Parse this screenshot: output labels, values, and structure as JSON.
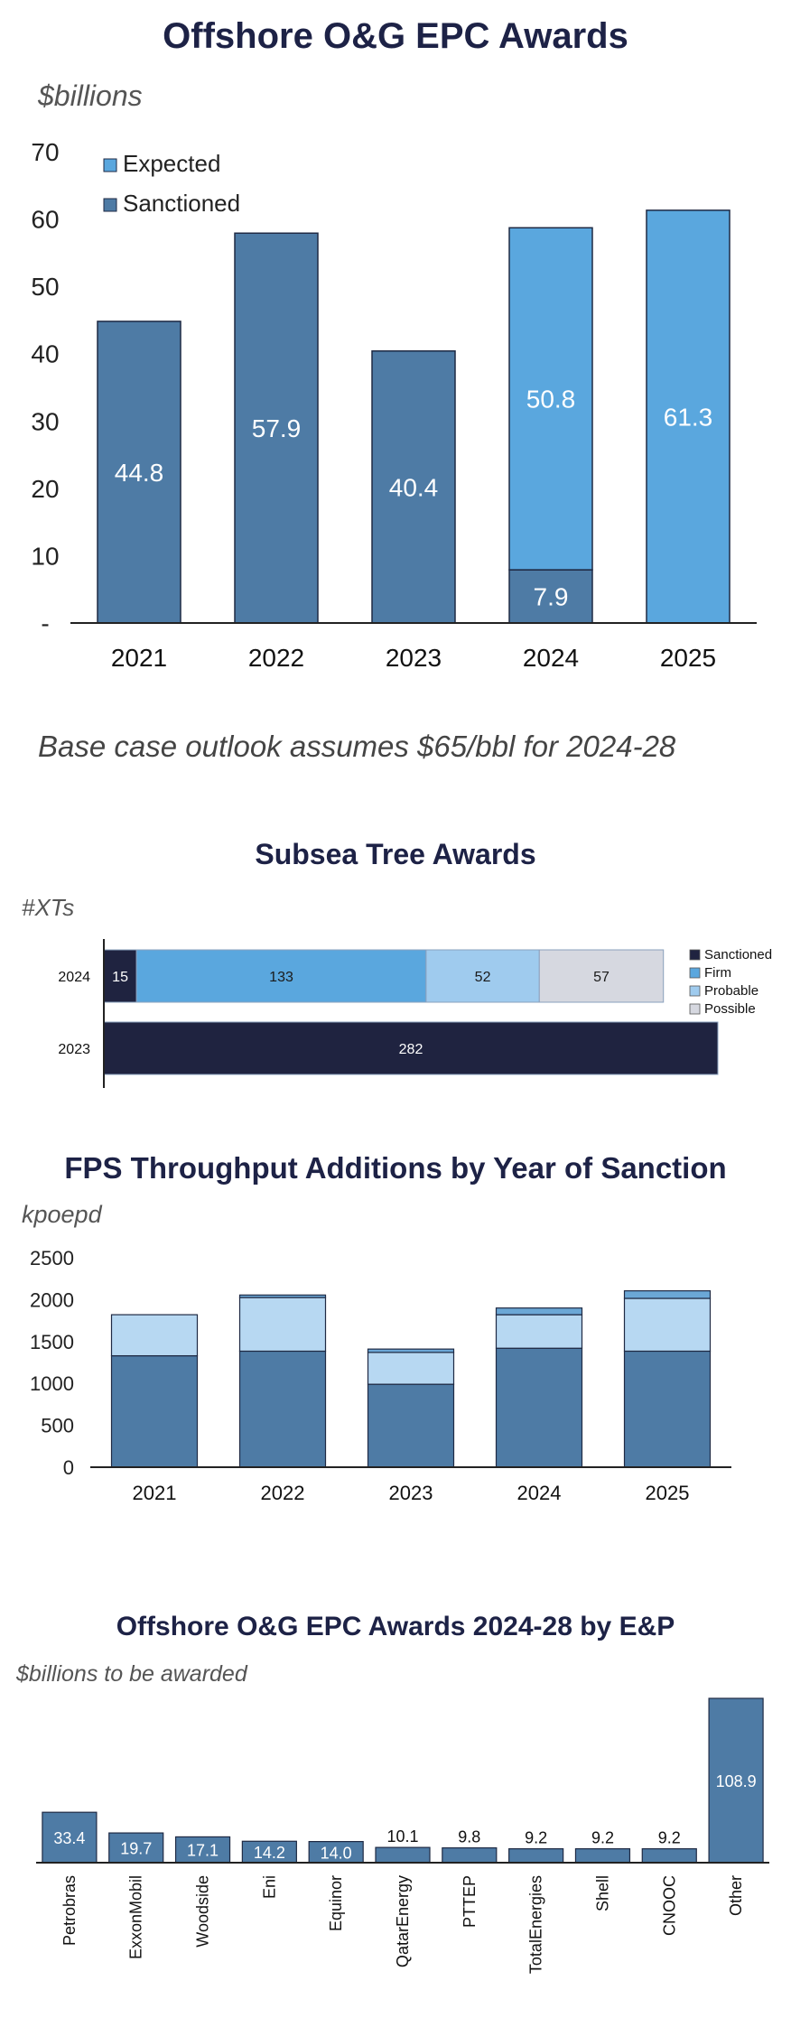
{
  "colors": {
    "sanctioned": "#4e7ba5",
    "expected": "#5aa7de",
    "dark": "#1f2340",
    "firm": "#5aa7de",
    "probable": "#9fcbee",
    "possible": "#d6d8e0",
    "fps_top": "#b7d8f2",
    "fps_top2": "#6ba7d6",
    "axis": "#222222"
  },
  "chart1": {
    "title": "Offshore O&G EPC Awards",
    "unit": "$billions",
    "note": "Base case outlook assumes $65/bbl for 2024-28"
  },
  "chart2": {
    "title": "Subsea Tree Awards",
    "unit": "#XTs"
  },
  "chart3": {
    "title": "FPS Throughput Additions by Year of Sanction",
    "unit": "kpoepd"
  },
  "chart4": {
    "title": "Offshore O&G EPC Awards 2024-28 by E&P",
    "unit": "$billions to be awarded"
  },
  "chart_data": [
    {
      "type": "bar",
      "title": "Offshore O&G EPC Awards",
      "ylabel": "$billions",
      "ylim": [
        0,
        70
      ],
      "yticks": [
        "-",
        "10",
        "20",
        "30",
        "40",
        "50",
        "60",
        "70"
      ],
      "categories": [
        "2021",
        "2022",
        "2023",
        "2024",
        "2025"
      ],
      "stacked": true,
      "legend": "top-left",
      "series": [
        {
          "name": "Sanctioned",
          "values": [
            44.8,
            57.9,
            40.4,
            7.9,
            0
          ]
        },
        {
          "name": "Expected",
          "values": [
            0,
            0,
            0,
            50.8,
            61.3
          ]
        }
      ],
      "labels": [
        [
          "44.8",
          "57.9",
          "40.4",
          "7.9",
          ""
        ],
        [
          "",
          "",
          "",
          "50.8",
          "61.3"
        ]
      ]
    },
    {
      "type": "bar",
      "orientation": "horizontal",
      "title": "Subsea Tree Awards",
      "xlabel": "#XTs",
      "categories": [
        "2024",
        "2023"
      ],
      "stacked": true,
      "legend": "right",
      "series": [
        {
          "name": "Sanctioned",
          "values": [
            15,
            282
          ]
        },
        {
          "name": "Firm",
          "values": [
            133,
            0
          ]
        },
        {
          "name": "Probable",
          "values": [
            52,
            0
          ]
        },
        {
          "name": "Possible",
          "values": [
            57,
            0
          ]
        }
      ]
    },
    {
      "type": "bar",
      "title": "FPS Throughput Additions by Year of Sanction",
      "ylabel": "kpoepd",
      "ylim": [
        0,
        2500
      ],
      "yticks": [
        "0",
        "500",
        "1000",
        "1500",
        "2000",
        "2500"
      ],
      "categories": [
        "2021",
        "2022",
        "2023",
        "2024",
        "2025"
      ],
      "stacked": true,
      "series": [
        {
          "values": [
            1330,
            1385,
            990,
            1420,
            1385
          ]
        },
        {
          "values": [
            490,
            640,
            380,
            400,
            630
          ]
        },
        {
          "values": [
            0,
            30,
            40,
            80,
            90
          ]
        }
      ]
    },
    {
      "type": "bar",
      "title": "Offshore O&G EPC Awards 2024-28 by E&P",
      "ylabel": "$billions to be awarded",
      "categories": [
        "Petrobras",
        "ExxonMobil",
        "Woodside",
        "Eni",
        "Equinor",
        "QatarEnergy",
        "PTTEP",
        "TotalEnergies",
        "Shell",
        "CNOOC",
        "Other"
      ],
      "values": [
        33.4,
        19.7,
        17.1,
        14.2,
        14.0,
        10.1,
        9.8,
        9.2,
        9.2,
        9.2,
        108.9
      ],
      "labels": [
        "33.4",
        "19.7",
        "17.1",
        "14.2",
        "14.0",
        "10.1",
        "9.8",
        "9.2",
        "9.2",
        "9.2",
        "108.9"
      ]
    }
  ]
}
